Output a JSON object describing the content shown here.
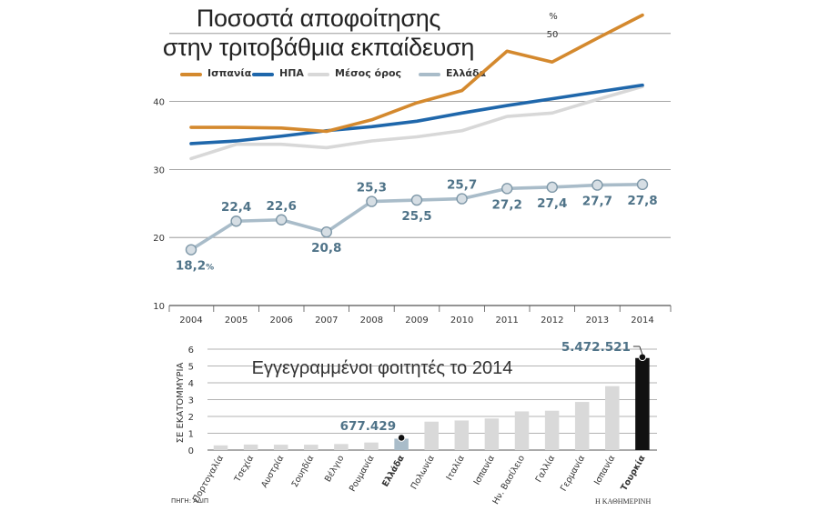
{
  "title_line1": "Ποσοστά αποφοίτησης",
  "title_line2": "στην τριτοβάθμια εκπαίδευση",
  "unit": "%",
  "source": "ΠΗΓΗ: ΑΔΙΠ",
  "publisher": "Η ΚΑΘΗΜΕΡΙΝΗ",
  "chart_data": [
    {
      "type": "line",
      "x": [
        "2004",
        "2005",
        "2006",
        "2007",
        "2008",
        "2009",
        "2010",
        "2011",
        "2012",
        "2013",
        "2014"
      ],
      "ylim": [
        10,
        55
      ],
      "yticks": [
        10,
        20,
        30,
        40,
        50
      ],
      "grid": true,
      "legend_position": "top",
      "series": [
        {
          "name": "Ισπανία",
          "color": "#d4892e",
          "values": [
            36.2,
            36.2,
            36.1,
            35.6,
            37.3,
            39.8,
            41.6,
            47.4,
            45.8,
            49.3,
            52.7
          ]
        },
        {
          "name": "ΗΠΑ",
          "color": "#1f67ab",
          "values": [
            33.8,
            34.2,
            34.9,
            35.7,
            36.3,
            37.1,
            38.3,
            39.4,
            40.4,
            41.4,
            42.4
          ]
        },
        {
          "name": "Μέσος όρος",
          "color": "#d8d8d8",
          "values": [
            31.6,
            33.7,
            33.7,
            33.2,
            34.2,
            34.8,
            35.7,
            37.8,
            38.3,
            40.3,
            42.2
          ]
        },
        {
          "name": "Ελλάδα",
          "color": "#a9bcc9",
          "values": [
            18.2,
            22.4,
            22.6,
            20.8,
            25.3,
            25.5,
            25.7,
            27.2,
            27.4,
            27.7,
            27.8
          ],
          "labels": [
            "18,2",
            "22,4",
            "22,6",
            "20,8",
            "25,3",
            "25,5",
            "25,7",
            "27,2",
            "27,4",
            "27,7",
            "27,8"
          ],
          "first_label_suffix": "%"
        }
      ]
    },
    {
      "type": "bar",
      "title": "Εγγεγραμμένοι φοιτητές το 2014",
      "ylabel": "ΣΕ ΕΚΑΤΟΜΜΥΡΙΑ",
      "ylim": [
        0,
        6
      ],
      "yticks": [
        0,
        1,
        2,
        3,
        4,
        5,
        6
      ],
      "categories": [
        "Πορτογαλία",
        "Τσεχία",
        "Αυστρία",
        "Σουηδία",
        "Βέλγιο",
        "Ρουμανία",
        "Ελλάδα",
        "Πολωνία",
        "Ιταλία",
        "Ισπανία",
        "Ην. Βασίλειο",
        "Γαλλία",
        "Γερμανία",
        "Ισπανία",
        "Τουρκία"
      ],
      "values": [
        0.28,
        0.33,
        0.32,
        0.32,
        0.36,
        0.45,
        0.677429,
        1.69,
        1.76,
        1.88,
        2.3,
        2.34,
        2.86,
        3.8,
        5.472521
      ],
      "highlight": {
        "Ελλάδα": "#a9bcc9",
        "Τουρκία": "#111111"
      },
      "default_color": "#d9d9d9",
      "annotations": [
        {
          "category": "Ελλάδα",
          "text": "677.429"
        },
        {
          "category": "Τουρκία",
          "text": "5.472.521"
        }
      ]
    }
  ]
}
